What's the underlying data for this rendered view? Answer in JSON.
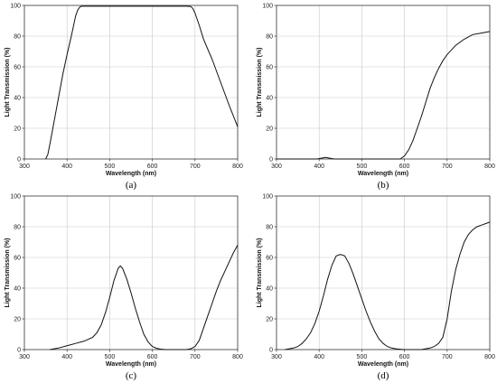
{
  "chart_data": [
    {
      "type": "line",
      "panel_label": "(a)",
      "xlabel": "Wavelength (nm)",
      "ylabel": "Light Transmission (%)",
      "xlim": [
        300,
        800
      ],
      "ylim": [
        0,
        100
      ],
      "xticks": [
        300,
        400,
        500,
        600,
        700,
        800
      ],
      "yticks": [
        0,
        20,
        40,
        60,
        80,
        100
      ],
      "grid": true,
      "series": [
        {
          "x": [
            350,
            355,
            360,
            370,
            380,
            390,
            400,
            410,
            420,
            425,
            430,
            435,
            440,
            500,
            600,
            680,
            690,
            695,
            700,
            710,
            720,
            740,
            760,
            780,
            800
          ],
          "y": [
            0,
            3,
            10,
            25,
            40,
            55,
            68,
            80,
            93,
            97,
            99,
            99.5,
            99.5,
            99.5,
            99.5,
            99.5,
            99.3,
            98,
            95,
            87,
            78,
            65,
            50,
            35,
            21
          ]
        }
      ]
    },
    {
      "type": "line",
      "panel_label": "(b)",
      "xlabel": "Wavelength (nm)",
      "ylabel": "Light Transmission (%)",
      "xlim": [
        300,
        800
      ],
      "ylim": [
        0,
        100
      ],
      "xticks": [
        300,
        400,
        500,
        600,
        700,
        800
      ],
      "yticks": [
        0,
        20,
        40,
        60,
        80,
        100
      ],
      "grid": true,
      "series": [
        {
          "x": [
            300,
            395,
            405,
            415,
            425,
            435,
            590,
            600,
            610,
            620,
            630,
            640,
            650,
            660,
            670,
            680,
            690,
            700,
            720,
            740,
            760,
            780,
            800
          ],
          "y": [
            0,
            0,
            0.5,
            1,
            0.5,
            0,
            0,
            2,
            6,
            12,
            20,
            28,
            37,
            46,
            53,
            59,
            64,
            68,
            74,
            78,
            81,
            82,
            83
          ]
        }
      ]
    },
    {
      "type": "line",
      "panel_label": "(c)",
      "xlabel": "Wavelength (nm)",
      "ylabel": "Light Transmission (%)",
      "xlim": [
        300,
        800
      ],
      "ylim": [
        0,
        100
      ],
      "xticks": [
        300,
        400,
        500,
        600,
        700,
        800
      ],
      "yticks": [
        0,
        20,
        40,
        60,
        80,
        100
      ],
      "grid": true,
      "series": [
        {
          "x": [
            360,
            380,
            400,
            420,
            440,
            460,
            470,
            480,
            490,
            500,
            510,
            520,
            525,
            530,
            540,
            550,
            560,
            570,
            580,
            590,
            600,
            610,
            620,
            630,
            680,
            690,
            700,
            710,
            720,
            730,
            740,
            750,
            760,
            770,
            780,
            790,
            800
          ],
          "y": [
            0,
            1,
            2.5,
            4,
            5.5,
            8,
            11,
            16,
            24,
            34,
            45,
            53,
            54.5,
            53,
            46,
            37,
            27,
            18,
            10,
            5,
            2,
            0.8,
            0.3,
            0,
            0,
            0.5,
            2,
            6,
            14,
            22,
            30,
            38,
            45,
            51,
            57,
            63,
            68
          ]
        }
      ]
    },
    {
      "type": "line",
      "panel_label": "(d)",
      "xlabel": "Wavelength (nm)",
      "ylabel": "Light Transmission (%)",
      "xlim": [
        300,
        800
      ],
      "ylim": [
        0,
        100
      ],
      "xticks": [
        300,
        400,
        500,
        600,
        700,
        800
      ],
      "yticks": [
        0,
        20,
        40,
        60,
        80,
        100
      ],
      "grid": true,
      "series": [
        {
          "x": [
            320,
            330,
            340,
            350,
            360,
            370,
            380,
            390,
            400,
            410,
            420,
            430,
            440,
            450,
            460,
            470,
            480,
            490,
            500,
            510,
            520,
            530,
            540,
            550,
            560,
            570,
            580,
            590,
            600,
            640,
            650,
            660,
            670,
            680,
            690,
            700,
            710,
            720,
            730,
            740,
            750,
            760,
            770,
            780,
            790,
            800
          ],
          "y": [
            0,
            0.5,
            1,
            2,
            4,
            7,
            11,
            17,
            25,
            35,
            46,
            55,
            61,
            62,
            61,
            56,
            49,
            41,
            33,
            25,
            18,
            12,
            7,
            4,
            2,
            1,
            0.5,
            0.2,
            0,
            0,
            0.5,
            1,
            2,
            4,
            8,
            20,
            38,
            52,
            62,
            70,
            75,
            78,
            80,
            81,
            82,
            83
          ]
        }
      ]
    }
  ]
}
